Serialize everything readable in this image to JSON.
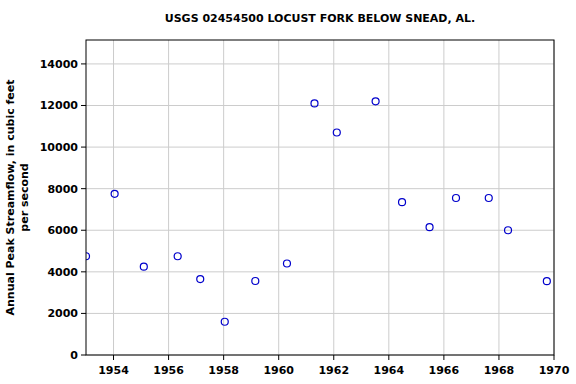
{
  "chart_data": {
    "type": "scatter",
    "title": "USGS 02454500 LOCUST FORK BELOW SNEAD, AL.",
    "ylabel": [
      "Annual Peak Streamflow, in cubic feet",
      "per second"
    ],
    "x": [
      1953.0,
      1954.04,
      1955.1,
      1956.33,
      1957.15,
      1958.04,
      1959.15,
      1960.3,
      1961.3,
      1962.11,
      1963.52,
      1964.48,
      1965.48,
      1966.44,
      1967.63,
      1968.33,
      1969.74
    ],
    "values": [
      4750,
      7750,
      4250,
      4750,
      3650,
      1600,
      3560,
      4400,
      12100,
      10700,
      12200,
      7350,
      6150,
      7550,
      7550,
      6000,
      3550
    ],
    "color": "#0000cc",
    "marker": "open-circle",
    "xlim": [
      1953,
      1970
    ],
    "xticks": [
      1954,
      1956,
      1958,
      1960,
      1962,
      1964,
      1966,
      1968,
      1970
    ],
    "ylim": [
      0,
      15150
    ],
    "yticks": [
      0,
      2000,
      4000,
      6000,
      8000,
      10000,
      12000,
      14000
    ],
    "grid": true
  }
}
